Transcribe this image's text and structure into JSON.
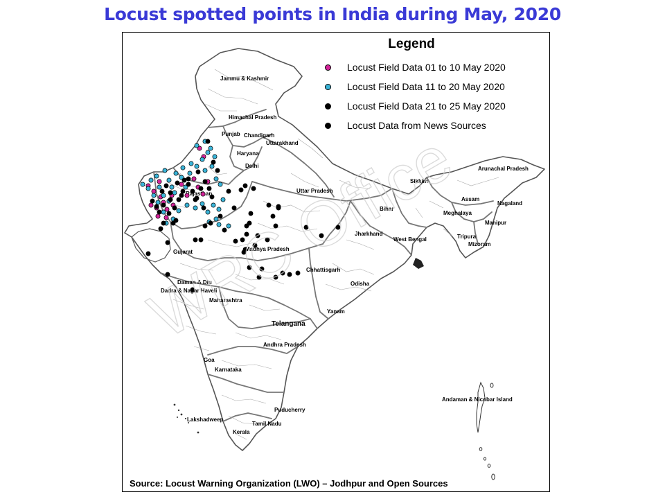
{
  "title": "Locust spotted  points in India during May, 2020",
  "legend": {
    "title": "Legend",
    "items": [
      {
        "label": "Locust Field Data 01 to 10 May 2020",
        "color": "#d4249a"
      },
      {
        "label": "Locust Field Data 11 to 20 May 2020",
        "color": "#3ab4d8"
      },
      {
        "label": "Locust Field Data 21 to 25 May 2020",
        "color": "#000000"
      },
      {
        "label": "Locust Data from News Sources",
        "color": "#000000"
      }
    ]
  },
  "source": "Source: Locust Warning Organization (LWO) – Jodhpur and Open Sources",
  "watermark": "WRC Office",
  "regions": {
    "jk": "Jammu & Kashmir",
    "hp": "Himachal Pradesh",
    "pb": "Punjab",
    "ch": "Chandigarh",
    "uk": "Uttarakhand",
    "hr": "Haryana",
    "dl": "Delhi",
    "rj": "Rajasthan",
    "up": "Uttar Pradesh",
    "sk": "Sikkim",
    "ar": "Arunachal Pradesh",
    "as": "Assam",
    "nl": "Nagaland",
    "ml": "Meghalaya",
    "mn": "Manipur",
    "br": "Bihar",
    "jh": "Jharkhand",
    "wb": "West Bengal",
    "tr": "Tripura",
    "mz": "Mizoram",
    "mp": "Madhya Pradesh",
    "gj": "Gujarat",
    "cg": "Chhattisgarh",
    "dd": "Daman & Diu",
    "dnh": "Dadra & Nagar Haveli",
    "mh": "Maharashtra",
    "od": "Odisha",
    "tg": "Telangana",
    "ap": "Andhra Pradesh",
    "ga": "Goa",
    "ka": "Karnataka",
    "py": "Puducherry",
    "ld": "Lakshadweep",
    "tn": "Tamil Nadu",
    "kl": "Kerala",
    "an": "Andaman & Nicobar Island",
    "ytn": "Yanam"
  },
  "points": {
    "may01_10": [
      [
        214,
        268
      ],
      [
        222,
        276
      ],
      [
        230,
        262
      ],
      [
        236,
        292
      ],
      [
        241,
        302
      ],
      [
        226,
        300
      ],
      [
        218,
        296
      ],
      [
        248,
        282
      ],
      [
        262,
        266
      ],
      [
        270,
        282
      ],
      [
        280,
        258
      ],
      [
        286,
        270
      ],
      [
        293,
        280
      ],
      [
        300,
        262
      ],
      [
        288,
        214
      ],
      [
        294,
        226
      ],
      [
        228,
        312
      ],
      [
        240,
        314
      ],
      [
        250,
        296
      ],
      [
        232,
        284
      ]
    ],
    "may11_20": [
      [
        218,
        260
      ],
      [
        230,
        270
      ],
      [
        236,
        282
      ],
      [
        244,
        290
      ],
      [
        252,
        278
      ],
      [
        262,
        256
      ],
      [
        274,
        250
      ],
      [
        284,
        240
      ],
      [
        292,
        230
      ],
      [
        300,
        220
      ],
      [
        306,
        240
      ],
      [
        312,
        258
      ],
      [
        318,
        266
      ],
      [
        322,
        288
      ],
      [
        308,
        296
      ],
      [
        300,
        306
      ],
      [
        312,
        316
      ],
      [
        302,
        320
      ],
      [
        292,
        294
      ],
      [
        282,
        300
      ],
      [
        270,
        296
      ],
      [
        258,
        304
      ],
      [
        250,
        316
      ],
      [
        240,
        322
      ],
      [
        236,
        306
      ],
      [
        228,
        292
      ],
      [
        222,
        282
      ],
      [
        214,
        272
      ],
      [
        206,
        266
      ],
      [
        284,
        210
      ],
      [
        296,
        204
      ],
      [
        304,
        214
      ],
      [
        310,
        226
      ],
      [
        296,
        246
      ],
      [
        276,
        236
      ],
      [
        264,
        242
      ],
      [
        254,
        250
      ],
      [
        244,
        260
      ],
      [
        238,
        246
      ],
      [
        226,
        254
      ],
      [
        248,
        270
      ],
      [
        268,
        270
      ],
      [
        316,
        302
      ],
      [
        330,
        326
      ],
      [
        316,
        324
      ]
    ],
    "may21_25": [
      [
        220,
        290
      ],
      [
        226,
        298
      ],
      [
        234,
        276
      ],
      [
        240,
        268
      ],
      [
        246,
        288
      ],
      [
        252,
        300
      ],
      [
        258,
        288
      ],
      [
        264,
        276
      ],
      [
        272,
        266
      ],
      [
        278,
        276
      ],
      [
        284,
        286
      ],
      [
        290,
        272
      ],
      [
        296,
        262
      ],
      [
        302,
        272
      ],
      [
        306,
        284
      ],
      [
        294,
        300
      ],
      [
        282,
        288
      ],
      [
        266,
        260
      ],
      [
        256,
        264
      ],
      [
        246,
        278
      ],
      [
        236,
        296
      ],
      [
        230,
        306
      ],
      [
        244,
        308
      ],
      [
        254,
        318
      ],
      [
        296,
        326
      ],
      [
        304,
        322
      ],
      [
        324,
        332
      ],
      [
        340,
        348
      ],
      [
        350,
        346
      ],
      [
        356,
        338
      ],
      [
        360,
        322
      ],
      [
        354,
        360
      ],
      [
        368,
        354
      ],
      [
        372,
        340
      ],
      [
        386,
        346
      ],
      [
        394,
        312
      ],
      [
        398,
        326
      ],
      [
        388,
        296
      ],
      [
        402,
        298
      ],
      [
        330,
        276
      ],
      [
        348,
        274
      ],
      [
        366,
        272
      ],
      [
        356,
        326
      ],
      [
        362,
        308
      ],
      [
        378,
        388
      ],
      [
        360,
        386
      ],
      [
        352,
        364
      ],
      [
        374,
        400
      ],
      [
        398,
        400
      ],
      [
        408,
        394
      ],
      [
        418,
        396
      ],
      [
        430,
        394
      ],
      [
        464,
        340
      ],
      [
        488,
        328
      ],
      [
        442,
        328
      ],
      [
        402,
        300
      ],
      [
        300,
        204
      ],
      [
        308,
        234
      ],
      [
        314,
        246
      ],
      [
        286,
        248
      ],
      [
        272,
        258
      ],
      [
        262,
        282
      ],
      [
        242,
        350
      ],
      [
        232,
        330
      ],
      [
        236,
        322
      ],
      [
        250,
        322
      ],
      [
        282,
        346
      ],
      [
        290,
        346
      ]
    ],
    "news": [
      [
        214,
        366
      ],
      [
        242,
        396
      ],
      [
        278,
        418
      ],
      [
        318,
        312
      ],
      [
        338,
        300
      ],
      [
        354,
        268
      ]
    ]
  }
}
